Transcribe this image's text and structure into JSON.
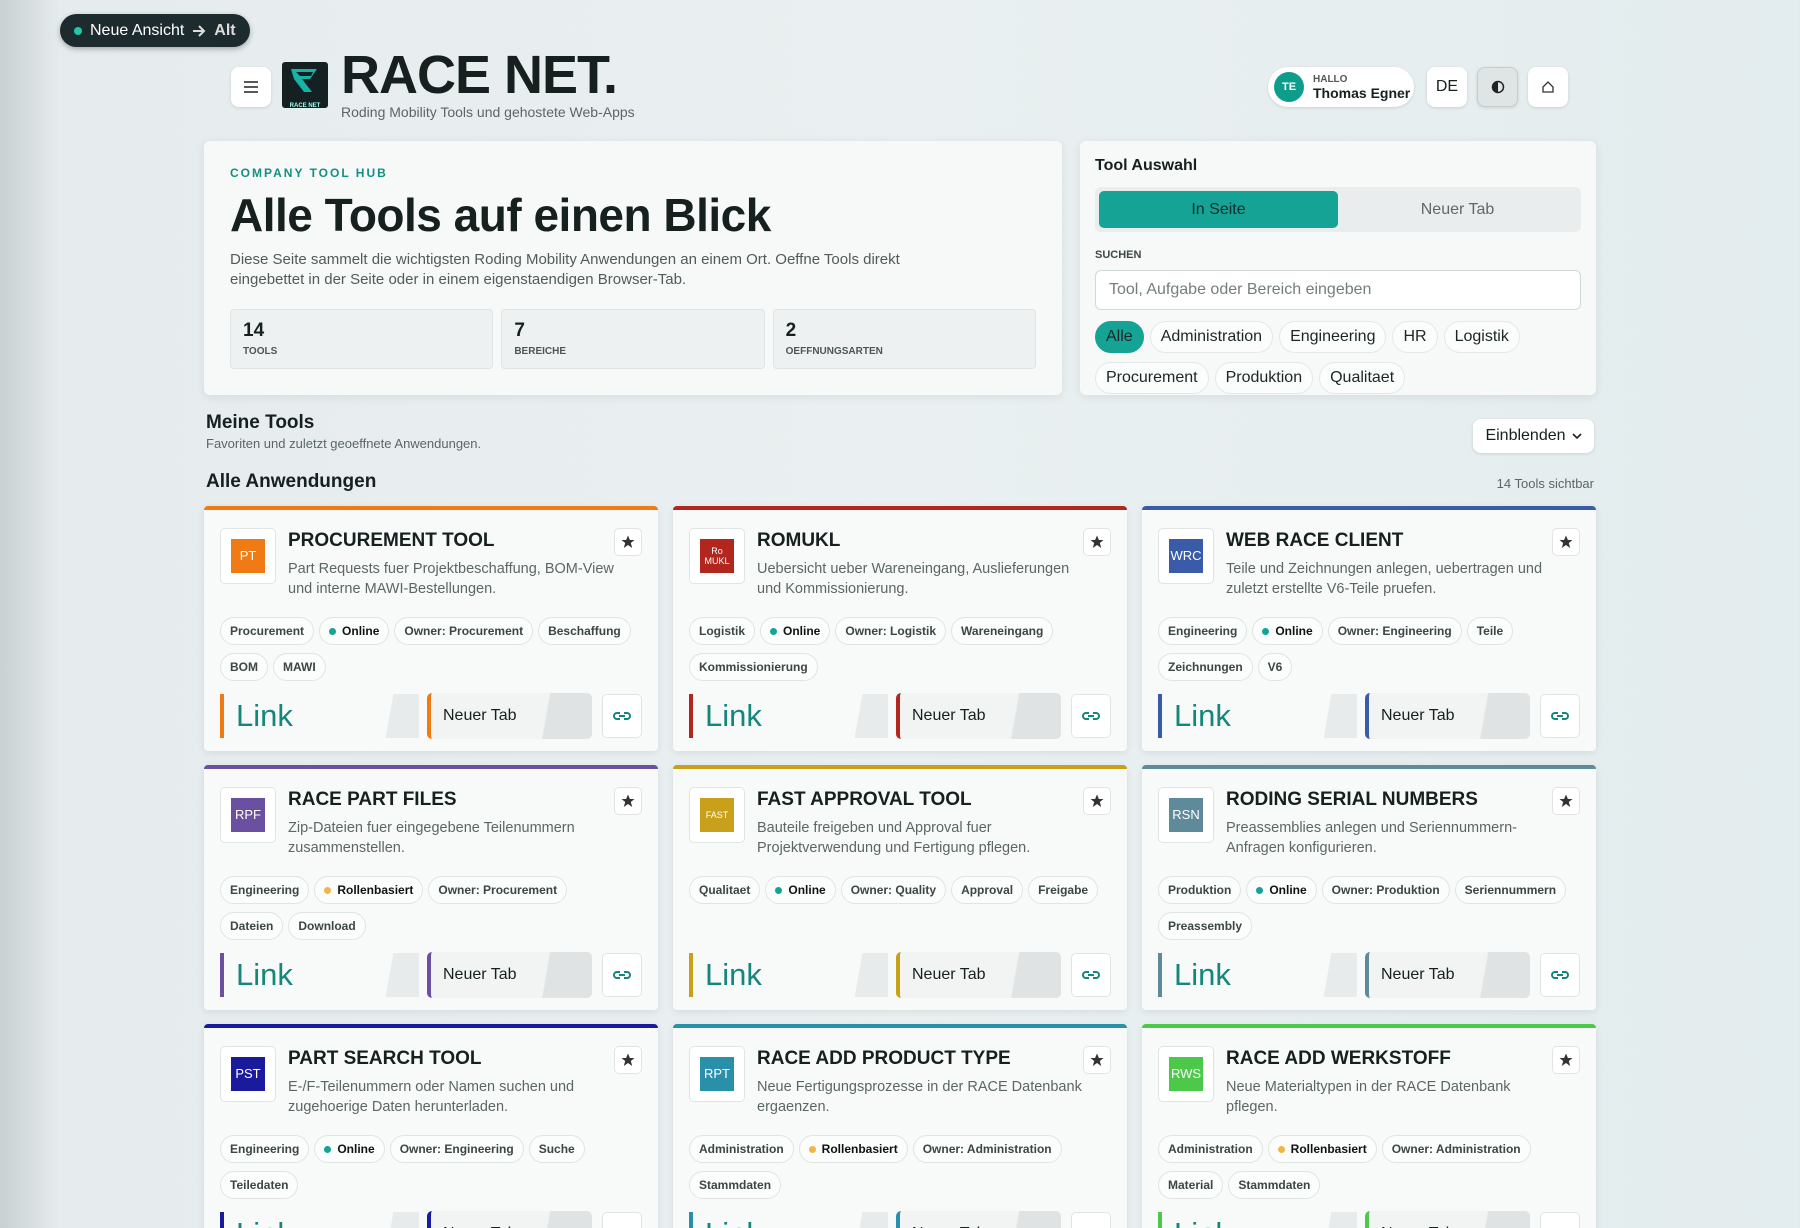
{
  "banner": {
    "label": "Neue Ansicht",
    "action": "Alt"
  },
  "header": {
    "logo_text": "RACE NET",
    "title": "RACE NET.",
    "subtitle": "Roding Mobility Tools und gehostete Web-Apps",
    "greeting": "HALLO",
    "user_initials": "TE",
    "user_name": "Thomas Egner",
    "language": "DE"
  },
  "hero": {
    "eyebrow": "COMPANY TOOL HUB",
    "title": "Alle Tools auf einen Blick",
    "description": "Diese Seite sammelt die wichtigsten Roding Mobility Anwendungen an einem Ort. Oeffne Tools direkt eingebettet in der Seite oder in einem eigenstaendigen Browser-Tab.",
    "stats": [
      {
        "value": 14,
        "label": "TOOLS"
      },
      {
        "value": 7,
        "label": "BEREICHE"
      },
      {
        "value": 2,
        "label": "OEFFNUNGSARTEN"
      }
    ]
  },
  "tool_selection": {
    "title": "Tool Auswahl",
    "modes": [
      "In Seite",
      "Neuer Tab"
    ],
    "search_label": "SUCHEN",
    "search_placeholder": "Tool, Aufgabe oder Bereich eingeben",
    "filters": [
      "Alle",
      "Administration",
      "Engineering",
      "HR",
      "Logistik",
      "Procurement",
      "Produktion",
      "Qualitaet"
    ]
  },
  "my_tools": {
    "title": "Meine Tools",
    "subtitle": "Favoriten und zuletzt geoeffnete Anwendungen.",
    "toggle": "Einblenden"
  },
  "all_apps": {
    "title": "Alle Anwendungen",
    "count_label": "14 Tools sichtbar"
  },
  "card_actions": {
    "link": "Link",
    "tab": "Neuer Tab"
  },
  "cards": [
    {
      "abbr": "PT",
      "title": "PROCUREMENT TOOL",
      "description": "Part Requests fuer Projektbeschaffung, BOM-View und interne MAWI-Bestellungen.",
      "color": "#f07b14",
      "category": "Procurement",
      "status": "Online",
      "status_color": "#14a394",
      "owner": "Owner: Procurement",
      "keywords": [
        "Beschaffung",
        "BOM",
        "MAWI"
      ]
    },
    {
      "abbr": "Ro MUKL",
      "title": "ROMUKL",
      "description": "Uebersicht ueber Wareneingang, Auslieferungen und Kommissionierung.",
      "color": "#b3261e",
      "category": "Logistik",
      "status": "Online",
      "status_color": "#14a394",
      "owner": "Owner: Logistik",
      "keywords": [
        "Wareneingang",
        "Kommissionierung"
      ]
    },
    {
      "abbr": "WRC",
      "title": "WEB RACE CLIENT",
      "description": "Teile und Zeichnungen anlegen, uebertragen und zuletzt erstellte V6-Teile pruefen.",
      "color": "#3a5ba8",
      "category": "Engineering",
      "status": "Online",
      "status_color": "#14a394",
      "owner": "Owner: Engineering",
      "keywords": [
        "Teile",
        "Zeichnungen",
        "V6"
      ]
    },
    {
      "abbr": "RPF",
      "title": "RACE PART FILES",
      "description": "Zip-Dateien fuer eingegebene Teilenummern zusammenstellen.",
      "color": "#6b4fa0",
      "category": "Engineering",
      "status": "Rollenbasiert",
      "status_color": "#f2b544",
      "owner": "Owner: Procurement",
      "keywords": [
        "Dateien",
        "Download"
      ]
    },
    {
      "abbr": "FAST",
      "title": "FAST APPROVAL TOOL",
      "description": "Bauteile freigeben und Approval fuer Projektverwendung und Fertigung pflegen.",
      "color": "#c9a01a",
      "category": "Qualitaet",
      "status": "Online",
      "status_color": "#14a394",
      "owner": "Owner: Quality",
      "keywords": [
        "Approval",
        "Freigabe"
      ]
    },
    {
      "abbr": "RSN",
      "title": "RODING SERIAL NUMBERS",
      "description": "Preassemblies anlegen und Seriennummern-Anfragen konfigurieren.",
      "color": "#5e8a99",
      "category": "Produktion",
      "status": "Online",
      "status_color": "#14a394",
      "owner": "Owner: Produktion",
      "keywords": [
        "Seriennummern",
        "Preassembly"
      ]
    },
    {
      "abbr": "PST",
      "title": "PART SEARCH TOOL",
      "description": "E-/F-Teilenummern oder Namen suchen und zugehoerige Daten herunterladen.",
      "color": "#1a1a9c",
      "category": "Engineering",
      "status": "Online",
      "status_color": "#14a394",
      "owner": "Owner: Engineering",
      "keywords": [
        "Suche",
        "Teiledaten"
      ]
    },
    {
      "abbr": "RPT",
      "title": "RACE ADD PRODUCT TYPE",
      "description": "Neue Fertigungsprozesse in der RACE Datenbank ergaenzen.",
      "color": "#2a8fa8",
      "category": "Administration",
      "status": "Rollenbasiert",
      "status_color": "#f2b544",
      "owner": "Owner: Administration",
      "keywords": [
        "Stammdaten"
      ]
    },
    {
      "abbr": "RWS",
      "title": "RACE ADD WERKSTOFF",
      "description": "Neue Materialtypen in der RACE Datenbank pflegen.",
      "color": "#4cc94a",
      "category": "Administration",
      "status": "Rollenbasiert",
      "status_color": "#f2b544",
      "owner": "Owner: Administration",
      "keywords": [
        "Material",
        "Stammdaten"
      ]
    }
  ]
}
